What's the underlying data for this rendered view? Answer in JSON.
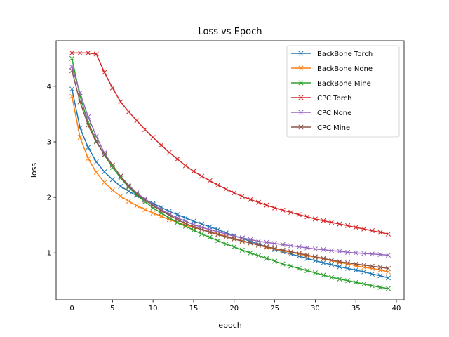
{
  "chart_data": {
    "type": "line",
    "title": "Loss vs Epoch",
    "xlabel": "epoch",
    "ylabel": "loss",
    "xlim": [
      -1.95,
      40.95
    ],
    "ylim": [
      0.156,
      4.82
    ],
    "xticks": [
      0,
      5,
      10,
      15,
      20,
      25,
      30,
      35,
      40
    ],
    "yticks": [
      1,
      2,
      3,
      4
    ],
    "grid": false,
    "legend": "top-right",
    "marker": "x",
    "x": [
      0,
      1,
      2,
      3,
      4,
      5,
      6,
      7,
      8,
      9,
      10,
      11,
      12,
      13,
      14,
      15,
      16,
      17,
      18,
      19,
      20,
      21,
      22,
      23,
      24,
      25,
      26,
      27,
      28,
      29,
      30,
      31,
      32,
      33,
      34,
      35,
      36,
      37,
      38,
      39
    ],
    "series": [
      {
        "name": "BackBone Torch",
        "color": "#1f77b4",
        "values": [
          3.95,
          3.25,
          2.9,
          2.64,
          2.46,
          2.32,
          2.2,
          2.11,
          2.03,
          1.96,
          1.89,
          1.82,
          1.75,
          1.69,
          1.63,
          1.57,
          1.52,
          1.47,
          1.42,
          1.36,
          1.31,
          1.26,
          1.21,
          1.16,
          1.11,
          1.06,
          1.02,
          0.98,
          0.94,
          0.9,
          0.86,
          0.82,
          0.79,
          0.75,
          0.72,
          0.69,
          0.66,
          0.62,
          0.59,
          0.55
        ]
      },
      {
        "name": "BackBone None",
        "color": "#ff7f0e",
        "values": [
          3.82,
          3.08,
          2.7,
          2.45,
          2.27,
          2.13,
          2.02,
          1.93,
          1.85,
          1.78,
          1.72,
          1.66,
          1.6,
          1.55,
          1.5,
          1.46,
          1.42,
          1.38,
          1.34,
          1.3,
          1.26,
          1.22,
          1.18,
          1.14,
          1.1,
          1.07,
          1.04,
          1.01,
          0.98,
          0.95,
          0.92,
          0.89,
          0.86,
          0.83,
          0.8,
          0.77,
          0.74,
          0.72,
          0.69,
          0.66
        ]
      },
      {
        "name": "BackBone Mine",
        "color": "#2ca02c",
        "values": [
          4.5,
          3.82,
          3.35,
          3.02,
          2.76,
          2.54,
          2.35,
          2.18,
          2.04,
          1.92,
          1.81,
          1.72,
          1.63,
          1.55,
          1.48,
          1.41,
          1.34,
          1.28,
          1.22,
          1.16,
          1.11,
          1.05,
          1.0,
          0.95,
          0.9,
          0.85,
          0.8,
          0.76,
          0.72,
          0.68,
          0.64,
          0.6,
          0.56,
          0.53,
          0.5,
          0.47,
          0.44,
          0.41,
          0.38,
          0.36
        ]
      },
      {
        "name": "CPC Torch",
        "color": "#d62728",
        "values": [
          4.6,
          4.6,
          4.6,
          4.58,
          4.25,
          3.97,
          3.72,
          3.54,
          3.38,
          3.22,
          3.08,
          2.94,
          2.81,
          2.69,
          2.57,
          2.47,
          2.38,
          2.3,
          2.22,
          2.15,
          2.08,
          2.02,
          1.96,
          1.91,
          1.86,
          1.81,
          1.77,
          1.73,
          1.69,
          1.65,
          1.61,
          1.58,
          1.55,
          1.52,
          1.49,
          1.46,
          1.43,
          1.4,
          1.37,
          1.34
        ]
      },
      {
        "name": "CPC None",
        "color": "#9467bd",
        "values": [
          4.35,
          3.88,
          3.45,
          3.1,
          2.8,
          2.58,
          2.38,
          2.22,
          2.08,
          1.97,
          1.87,
          1.78,
          1.7,
          1.63,
          1.57,
          1.51,
          1.46,
          1.42,
          1.38,
          1.34,
          1.3,
          1.27,
          1.24,
          1.21,
          1.19,
          1.17,
          1.15,
          1.13,
          1.11,
          1.09,
          1.07,
          1.06,
          1.04,
          1.03,
          1.01,
          1.0,
          0.99,
          0.98,
          0.97,
          0.96
        ]
      },
      {
        "name": "CPC Mine",
        "color": "#8c564b",
        "values": [
          4.28,
          3.72,
          3.3,
          3.0,
          2.77,
          2.58,
          2.38,
          2.2,
          2.06,
          1.95,
          1.85,
          1.76,
          1.68,
          1.6,
          1.53,
          1.47,
          1.42,
          1.37,
          1.33,
          1.29,
          1.25,
          1.21,
          1.18,
          1.14,
          1.11,
          1.08,
          1.05,
          1.02,
          0.99,
          0.96,
          0.93,
          0.9,
          0.87,
          0.84,
          0.82,
          0.8,
          0.78,
          0.76,
          0.74,
          0.72
        ]
      }
    ]
  }
}
